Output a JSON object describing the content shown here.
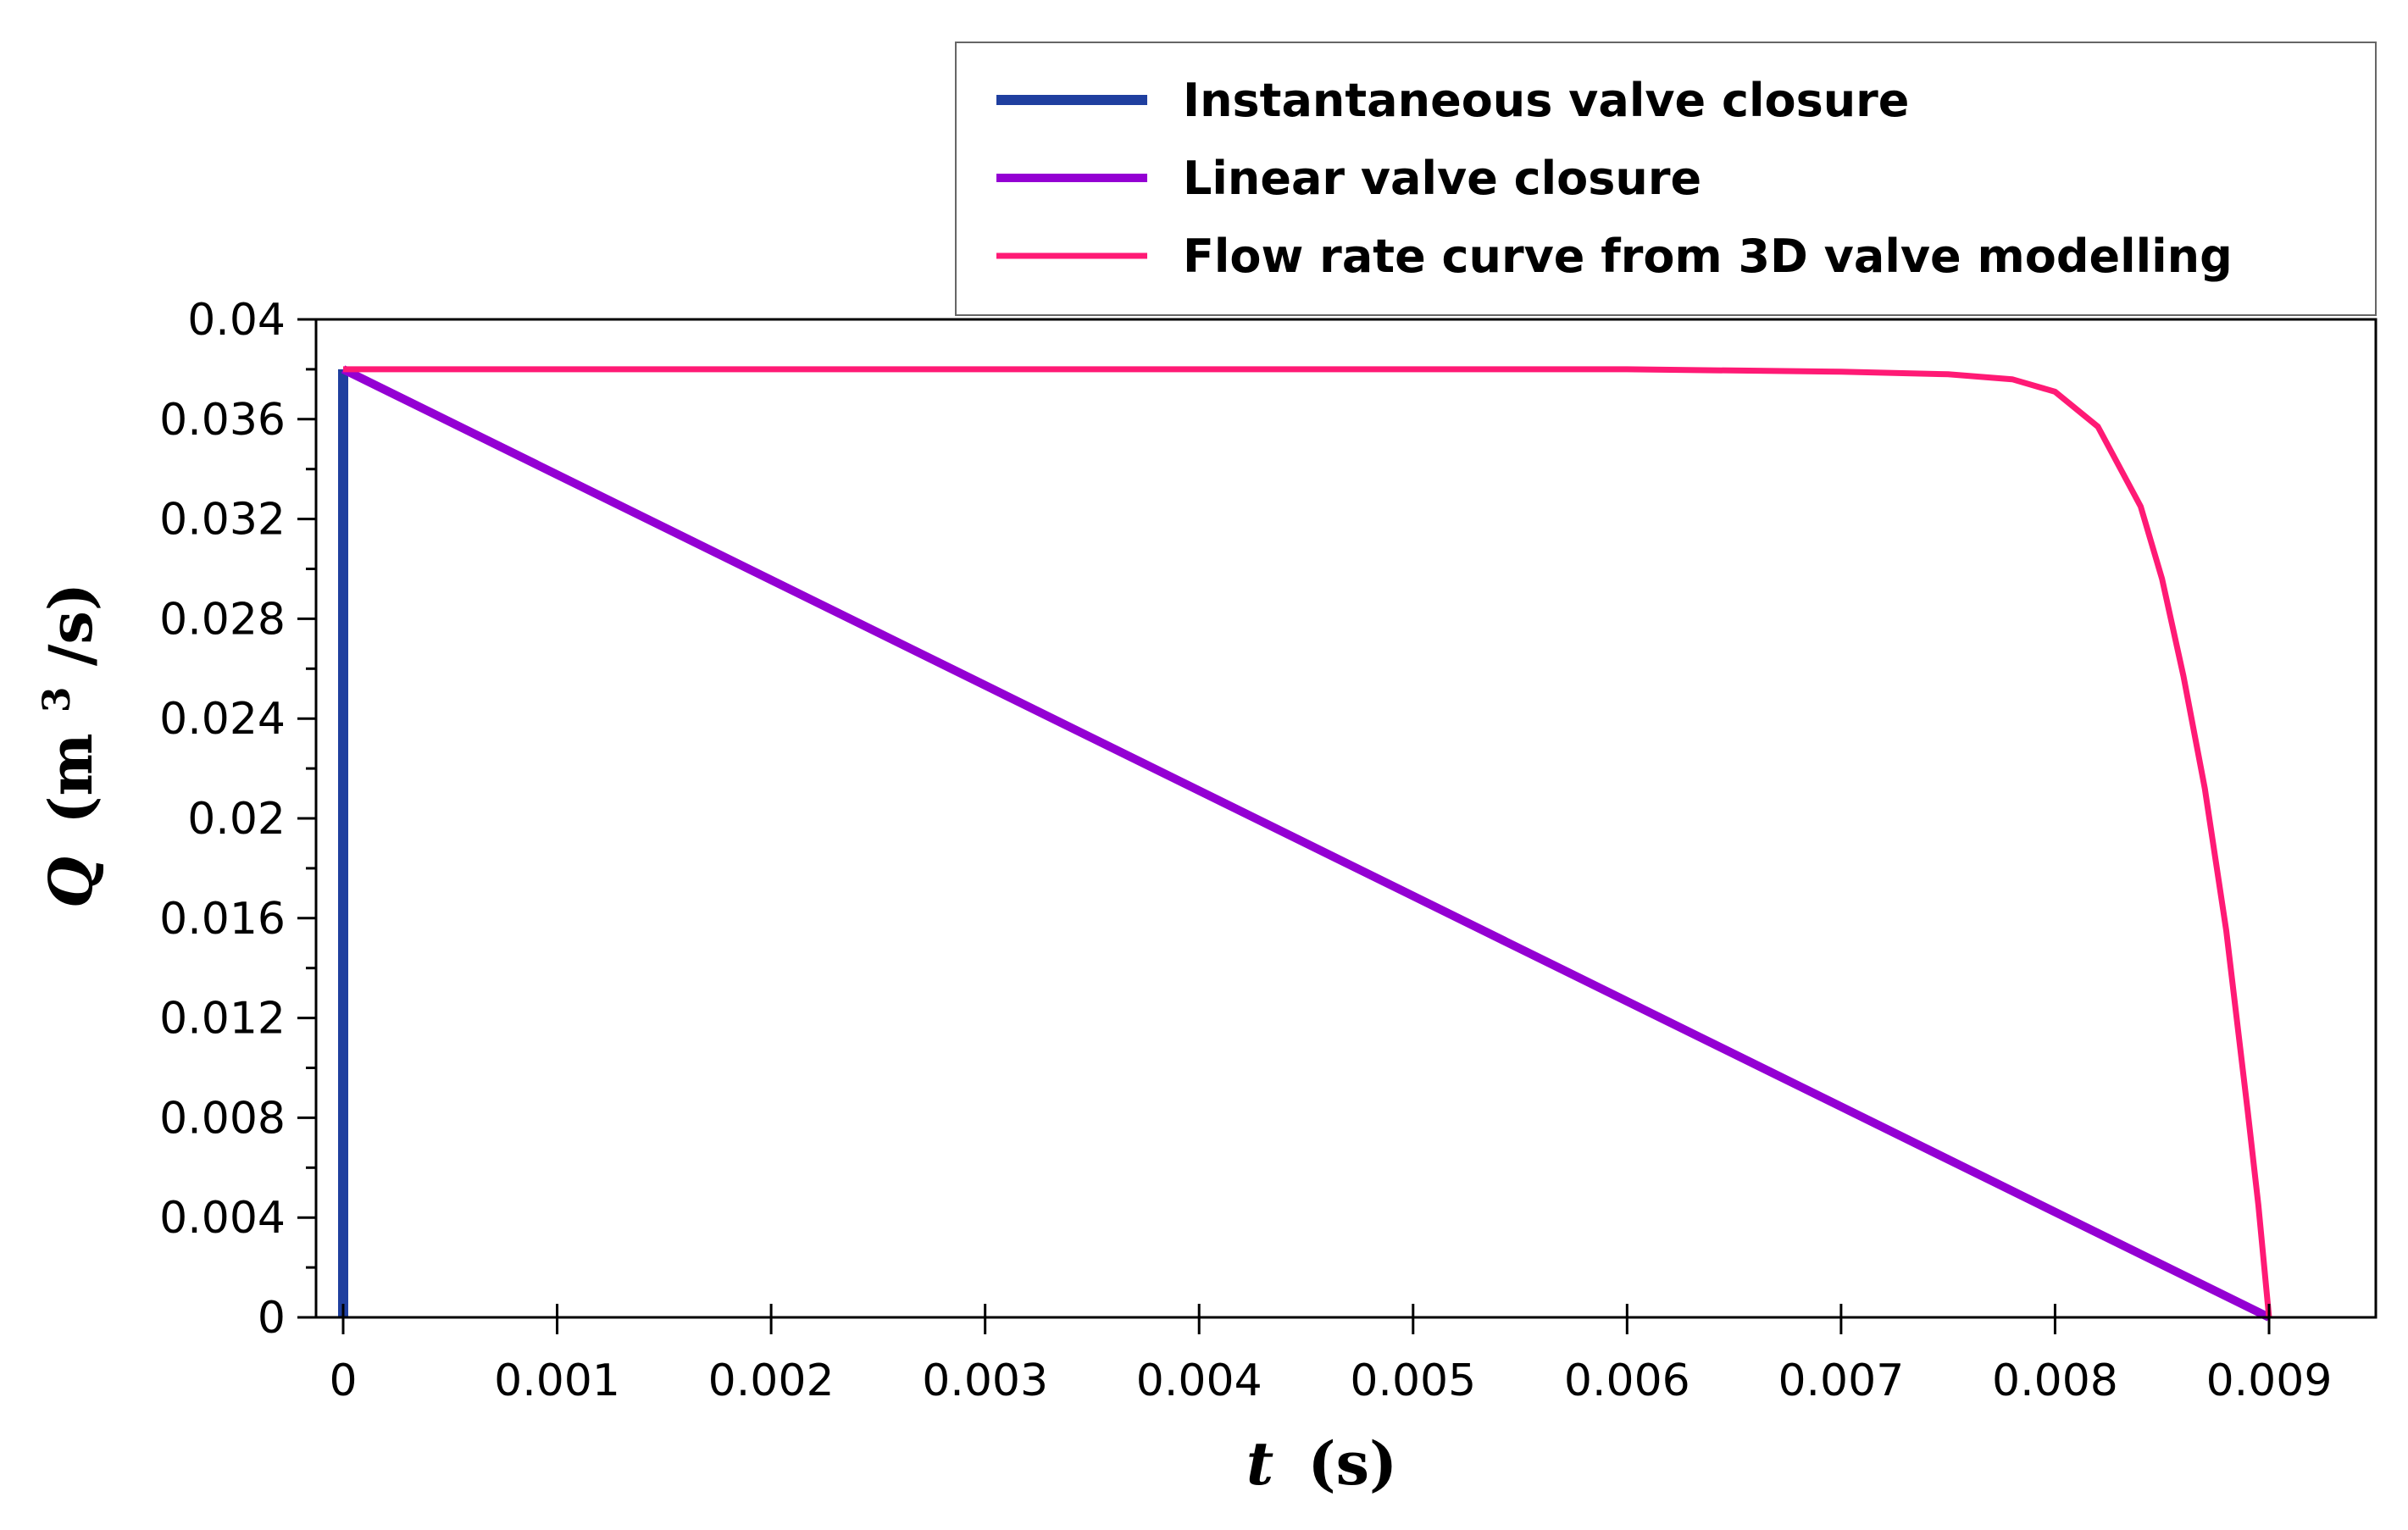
{
  "chart_data": {
    "type": "line",
    "title": "",
    "xlabel": {
      "symbol": "t",
      "unit": "(s)"
    },
    "ylabel": {
      "symbol": "Q",
      "unit_open": "(m",
      "unit_sup": "3",
      "unit_close": "/s)"
    },
    "xlim": [
      0,
      0.0095
    ],
    "ylim": [
      0,
      0.04
    ],
    "x_ticks": [
      "0",
      "0.001",
      "0.002",
      "0.003",
      "0.004",
      "0.005",
      "0.006",
      "0.007",
      "0.008",
      "0.009"
    ],
    "y_ticks": [
      "0",
      "0.004",
      "0.008",
      "0.012",
      "0.016",
      "0.02",
      "0.024",
      "0.028",
      "0.032",
      "0.036",
      "0.04"
    ],
    "grid": false,
    "legend_position": "top-right, above plot",
    "series": [
      {
        "name": "Instantaneous valve closure",
        "color": "#1f3f9f",
        "x": [
          0,
          0
        ],
        "y": [
          0.038,
          0
        ]
      },
      {
        "name": "Linear valve closure",
        "color": "#9400d3",
        "x": [
          0,
          0.009
        ],
        "y": [
          0.038,
          0
        ]
      },
      {
        "name": "Flow rate curve from 3D valve modelling",
        "color": "#ff1a75",
        "x": [
          0,
          0.001,
          0.002,
          0.003,
          0.004,
          0.005,
          0.006,
          0.007,
          0.0075,
          0.0078,
          0.008,
          0.0082,
          0.0084,
          0.0085,
          0.0086,
          0.0087,
          0.0088,
          0.0089,
          0.00895,
          0.009
        ],
        "y": [
          0.038,
          0.038,
          0.038,
          0.038,
          0.038,
          0.038,
          0.038,
          0.0379,
          0.0378,
          0.0376,
          0.0371,
          0.0357,
          0.0325,
          0.0296,
          0.0257,
          0.0212,
          0.0155,
          0.0083,
          0.0045,
          0.0
        ]
      }
    ]
  }
}
